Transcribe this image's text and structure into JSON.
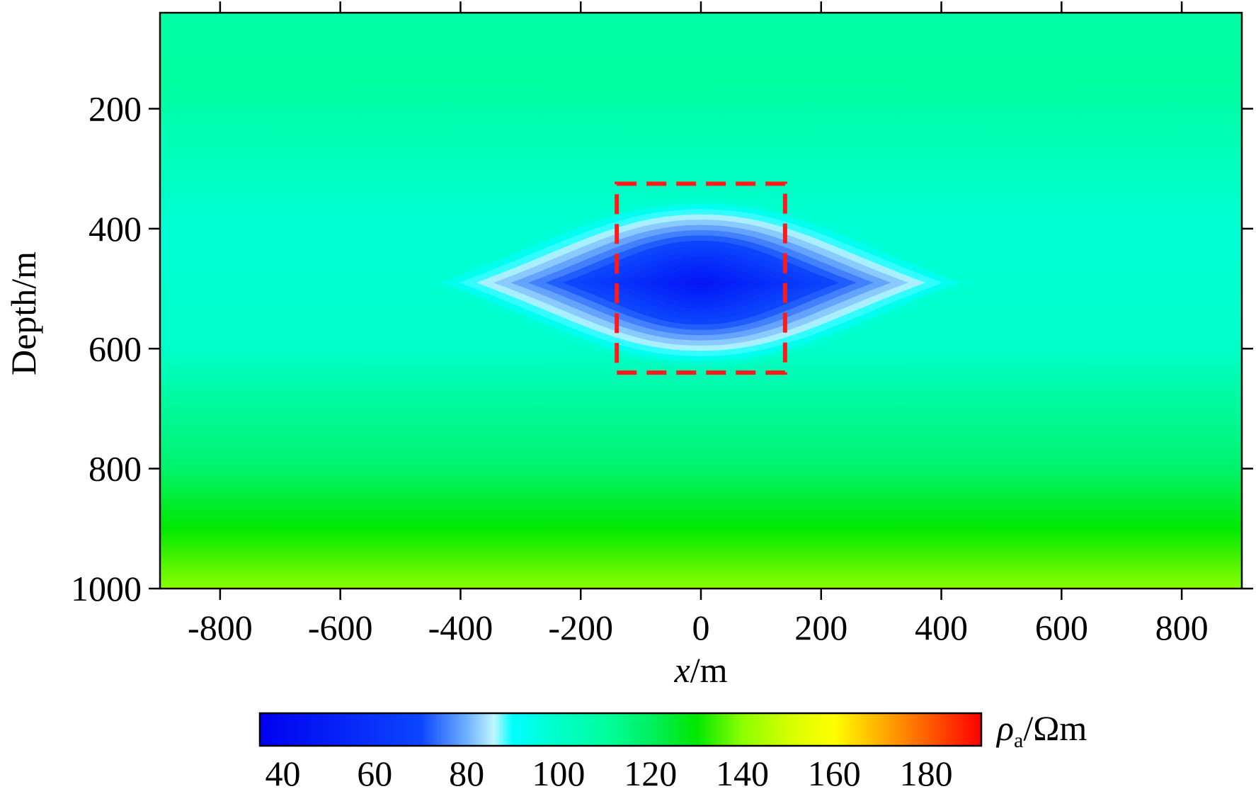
{
  "chart_data": {
    "type": "heatmap",
    "xlabel": {
      "var": "x",
      "unit": "/m"
    },
    "ylabel": "Depth/m",
    "xlim": [
      -900,
      900
    ],
    "ylim": [
      40,
      1000
    ],
    "y_inverted": true,
    "x_ticks": [
      "-800",
      "-600",
      "-400",
      "-200",
      "0",
      "200",
      "400",
      "600",
      "800"
    ],
    "x_tick_values": [
      -800,
      -600,
      -400,
      -200,
      0,
      200,
      400,
      600,
      800
    ],
    "y_ticks": [
      "200",
      "400",
      "600",
      "800",
      "1000"
    ],
    "y_tick_values": [
      200,
      400,
      600,
      800,
      1000
    ],
    "background_resistivity": [
      {
        "depth": 40,
        "value": 108
      },
      {
        "depth": 150,
        "value": 110
      },
      {
        "depth": 400,
        "value": 98
      },
      {
        "depth": 600,
        "value": 100
      },
      {
        "depth": 800,
        "value": 118
      },
      {
        "depth": 900,
        "value": 130
      },
      {
        "depth": 1000,
        "value": 140
      }
    ],
    "anomaly": {
      "center_x": 0,
      "center_depth": 490,
      "min_value": 47,
      "half_width_x": 460,
      "half_height_depth": 140
    },
    "annotation_box": {
      "x_min": -140,
      "x_max": 140,
      "depth_min": 325,
      "depth_max": 640,
      "color": "#ff1a1a",
      "style": "dashed"
    },
    "colorbar": {
      "label_symbol": "ρ",
      "label_subscript": "a",
      "label_unit": "/Ωm",
      "range": [
        35,
        192
      ],
      "ticks": [
        "40",
        "60",
        "80",
        "100",
        "120",
        "140",
        "160",
        "180"
      ],
      "tick_values": [
        40,
        60,
        80,
        100,
        120,
        140,
        160,
        180
      ],
      "colors": [
        {
          "value": 35,
          "color": "#0000f0"
        },
        {
          "value": 70,
          "color": "#0b46ff"
        },
        {
          "value": 80,
          "color": "#6fb0ff"
        },
        {
          "value": 86,
          "color": "#bff6ff"
        },
        {
          "value": 90,
          "color": "#00ffff"
        },
        {
          "value": 100,
          "color": "#00ffc8"
        },
        {
          "value": 110,
          "color": "#00ffa0"
        },
        {
          "value": 120,
          "color": "#00f060"
        },
        {
          "value": 130,
          "color": "#00e800"
        },
        {
          "value": 140,
          "color": "#8cff00"
        },
        {
          "value": 150,
          "color": "#d4ff00"
        },
        {
          "value": 160,
          "color": "#ffff00"
        },
        {
          "value": 170,
          "color": "#ffb000"
        },
        {
          "value": 180,
          "color": "#ff6000"
        },
        {
          "value": 192,
          "color": "#ff0000"
        }
      ]
    }
  }
}
